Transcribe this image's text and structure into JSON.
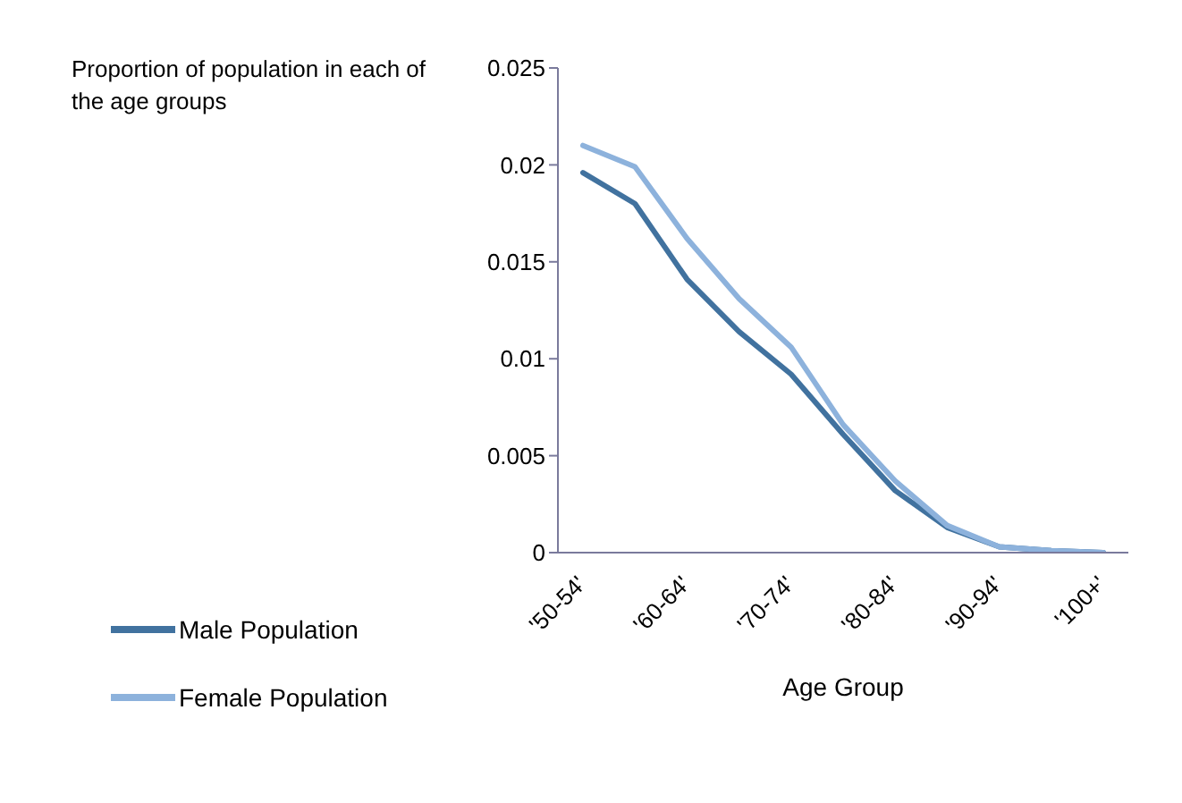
{
  "chart_data": {
    "type": "line",
    "ylabel": "Proportion of population in each of the age groups",
    "xlabel": "Age Group",
    "categories": [
      "'50-54'",
      null,
      "'60-64'",
      null,
      "'70-74'",
      null,
      "'80-84'",
      null,
      "'90-94'",
      null,
      "'100+'"
    ],
    "series": [
      {
        "name": "Male Population",
        "color": "#41729f",
        "values": [
          0.0196,
          0.018,
          0.0141,
          0.0114,
          0.0092,
          0.0061,
          0.0032,
          0.0013,
          0.0003,
          0.0001,
          0
        ]
      },
      {
        "name": "Female Population",
        "color": "#8db2dc",
        "values": [
          0.021,
          0.0199,
          0.0162,
          0.0131,
          0.0106,
          0.0066,
          0.0037,
          0.0014,
          0.0003,
          0.0001,
          0
        ]
      }
    ],
    "ylim": [
      0,
      0.025
    ],
    "yticks": [
      0,
      0.005,
      0.01,
      0.015,
      0.02,
      0.025
    ],
    "grid": false,
    "legend": "bottom left",
    "marker": "none",
    "line_style": "solid"
  }
}
